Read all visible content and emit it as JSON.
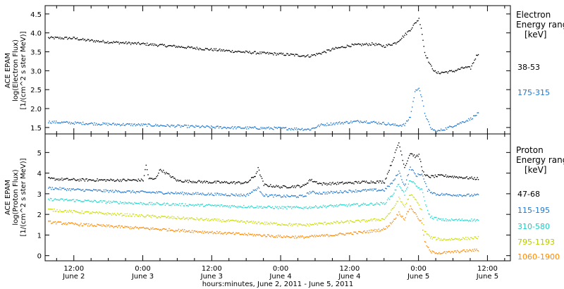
{
  "xlabel": "hours:minutes, June  2, 2011 - June  5, 2011",
  "x_ticks": [
    {
      "t": 12,
      "time": "12:00",
      "day": "June 2"
    },
    {
      "t": 24,
      "time": "0:00",
      "day": "June 3"
    },
    {
      "t": 36,
      "time": "12:00",
      "day": "June 3"
    },
    {
      "t": 48,
      "time": "0:00",
      "day": "June 4"
    },
    {
      "t": 60,
      "time": "12:00",
      "day": "June 4"
    },
    {
      "t": 72,
      "time": "0:00",
      "day": "June 5"
    },
    {
      "t": 84,
      "time": "12:00",
      "day": "June 5"
    }
  ],
  "chart_data": [
    {
      "type": "scatter",
      "panel": "electron",
      "ylabel_lines": [
        "ACE EPAM",
        "log(Electron Flux)",
        "[1/(cm^2 s ster MeV)]"
      ],
      "legend_title": [
        "Electron",
        "Energy ranges",
        "[keV]"
      ],
      "xlim": [
        7,
        88
      ],
      "ylim": [
        1.33,
        4.72
      ],
      "yticks": [
        1.5,
        2.0,
        2.5,
        3.0,
        3.5,
        4.0,
        4.5
      ],
      "ytick_labels": [
        "1.5",
        "2.0",
        "2.5",
        "3.0",
        "3.5",
        "4.0",
        "4.5"
      ],
      "series": [
        {
          "name": "38-53",
          "color": "#000000",
          "x": [
            7.5,
            12,
            14,
            18,
            24,
            30,
            36,
            42,
            48,
            53,
            55,
            57,
            60,
            64,
            66,
            68,
            69.5,
            70.5,
            71.5,
            72,
            72.4,
            73,
            74,
            75,
            78,
            80,
            81,
            82,
            82.5
          ],
          "y": [
            3.88,
            3.87,
            3.82,
            3.77,
            3.72,
            3.65,
            3.57,
            3.5,
            3.45,
            3.4,
            3.48,
            3.58,
            3.68,
            3.72,
            3.66,
            3.75,
            3.95,
            4.1,
            4.3,
            4.38,
            4.15,
            3.5,
            3.15,
            2.95,
            3.0,
            3.1,
            3.08,
            3.4,
            3.5
          ]
        },
        {
          "name": "175-315",
          "color": "#1f77d0",
          "x": [
            7.5,
            12,
            18,
            24,
            30,
            36,
            42,
            48,
            52,
            53,
            55,
            58,
            62,
            66,
            68,
            69.5,
            70.5,
            71.3,
            72,
            72.6,
            73,
            74,
            75,
            77,
            79,
            81,
            82,
            82.5
          ],
          "y": [
            1.66,
            1.63,
            1.6,
            1.58,
            1.55,
            1.52,
            1.5,
            1.49,
            1.47,
            1.46,
            1.58,
            1.63,
            1.68,
            1.62,
            1.57,
            1.58,
            1.8,
            2.45,
            2.58,
            2.2,
            1.9,
            1.5,
            1.4,
            1.5,
            1.62,
            1.74,
            1.85,
            1.9
          ]
        }
      ]
    },
    {
      "type": "scatter",
      "panel": "proton",
      "ylabel_lines": [
        "ACE EPAM",
        "log(Proton Flux)",
        "[1/(cm^2 s ster MeV)]"
      ],
      "legend_title": [
        "Proton",
        "Energy ranges",
        "[keV]"
      ],
      "xlim": [
        7,
        88
      ],
      "ylim": [
        -0.25,
        5.9
      ],
      "yticks": [
        0,
        1,
        2,
        3,
        4,
        5
      ],
      "ytick_labels": [
        "0",
        "1",
        "2",
        "3",
        "4",
        "5"
      ],
      "series": [
        {
          "name": "47-68",
          "color": "#000000",
          "x": [
            7.5,
            12,
            18,
            24,
            24.5,
            25,
            26,
            27,
            30,
            36,
            42,
            43.5,
            44,
            45,
            48,
            52,
            53,
            55,
            60,
            63,
            66,
            67.5,
            68.5,
            69.5,
            70.5,
            71.5,
            72,
            72.6,
            73,
            74,
            76,
            80,
            82.5
          ],
          "y": [
            3.75,
            3.7,
            3.68,
            3.68,
            4.4,
            3.75,
            3.72,
            4.2,
            3.65,
            3.58,
            3.55,
            3.9,
            4.25,
            3.45,
            3.35,
            3.4,
            3.7,
            3.5,
            3.55,
            3.6,
            3.6,
            4.7,
            5.5,
            4.3,
            5.0,
            4.8,
            4.9,
            4.2,
            3.9,
            3.85,
            3.9,
            3.8,
            3.75
          ]
        },
        {
          "name": "115-195",
          "color": "#1f77d0",
          "x": [
            7.5,
            12,
            18,
            24,
            30,
            36,
            42,
            44,
            45,
            48,
            52,
            53,
            55,
            60,
            64,
            66,
            67.5,
            68.5,
            69.5,
            70.5,
            71.5,
            72.5,
            73.5,
            75,
            80,
            82.5
          ],
          "y": [
            3.3,
            3.22,
            3.15,
            3.1,
            3.05,
            3.0,
            2.95,
            3.3,
            2.95,
            2.9,
            2.9,
            3.1,
            3.05,
            3.15,
            3.2,
            3.2,
            3.6,
            4.1,
            3.4,
            4.3,
            3.9,
            4.0,
            3.2,
            3.0,
            2.95,
            2.95
          ]
        },
        {
          "name": "310-580",
          "color": "#22d8d0",
          "x": [
            7.5,
            12,
            18,
            24,
            30,
            36,
            42,
            48,
            52,
            56,
            62,
            66,
            67.5,
            68.5,
            69.5,
            70.5,
            71.5,
            72.5,
            73.5,
            74,
            76,
            80,
            82.5
          ],
          "y": [
            2.75,
            2.7,
            2.62,
            2.55,
            2.5,
            2.45,
            2.4,
            2.35,
            2.35,
            2.42,
            2.5,
            2.55,
            3.0,
            3.5,
            3.0,
            3.7,
            3.4,
            3.2,
            2.2,
            1.9,
            1.75,
            1.75,
            1.75
          ]
        },
        {
          "name": "795-1193",
          "color": "#ccdd00",
          "x": [
            7.5,
            12,
            18,
            24,
            30,
            36,
            42,
            48,
            52,
            56,
            62,
            66,
            67.5,
            68.5,
            69.5,
            70.5,
            71.5,
            72.5,
            73,
            74,
            76,
            80,
            82.5
          ],
          "y": [
            2.25,
            2.15,
            2.05,
            1.95,
            1.85,
            1.75,
            1.65,
            1.55,
            1.5,
            1.6,
            1.7,
            1.8,
            2.3,
            2.8,
            2.4,
            3.0,
            2.7,
            2.2,
            1.2,
            0.9,
            0.8,
            0.85,
            0.9
          ]
        },
        {
          "name": "1060-1900",
          "color": "#ff8800",
          "x": [
            7.5,
            12,
            18,
            24,
            30,
            36,
            42,
            48,
            52,
            56,
            62,
            66,
            67.5,
            68.5,
            69.5,
            70.5,
            71.5,
            72.5,
            73,
            74,
            76,
            80,
            82.5
          ],
          "y": [
            1.65,
            1.55,
            1.45,
            1.35,
            1.25,
            1.15,
            1.05,
            0.95,
            0.92,
            1.0,
            1.15,
            1.3,
            1.7,
            2.1,
            1.8,
            2.4,
            2.0,
            1.6,
            0.7,
            0.2,
            0.15,
            0.25,
            0.3
          ]
        }
      ]
    }
  ]
}
